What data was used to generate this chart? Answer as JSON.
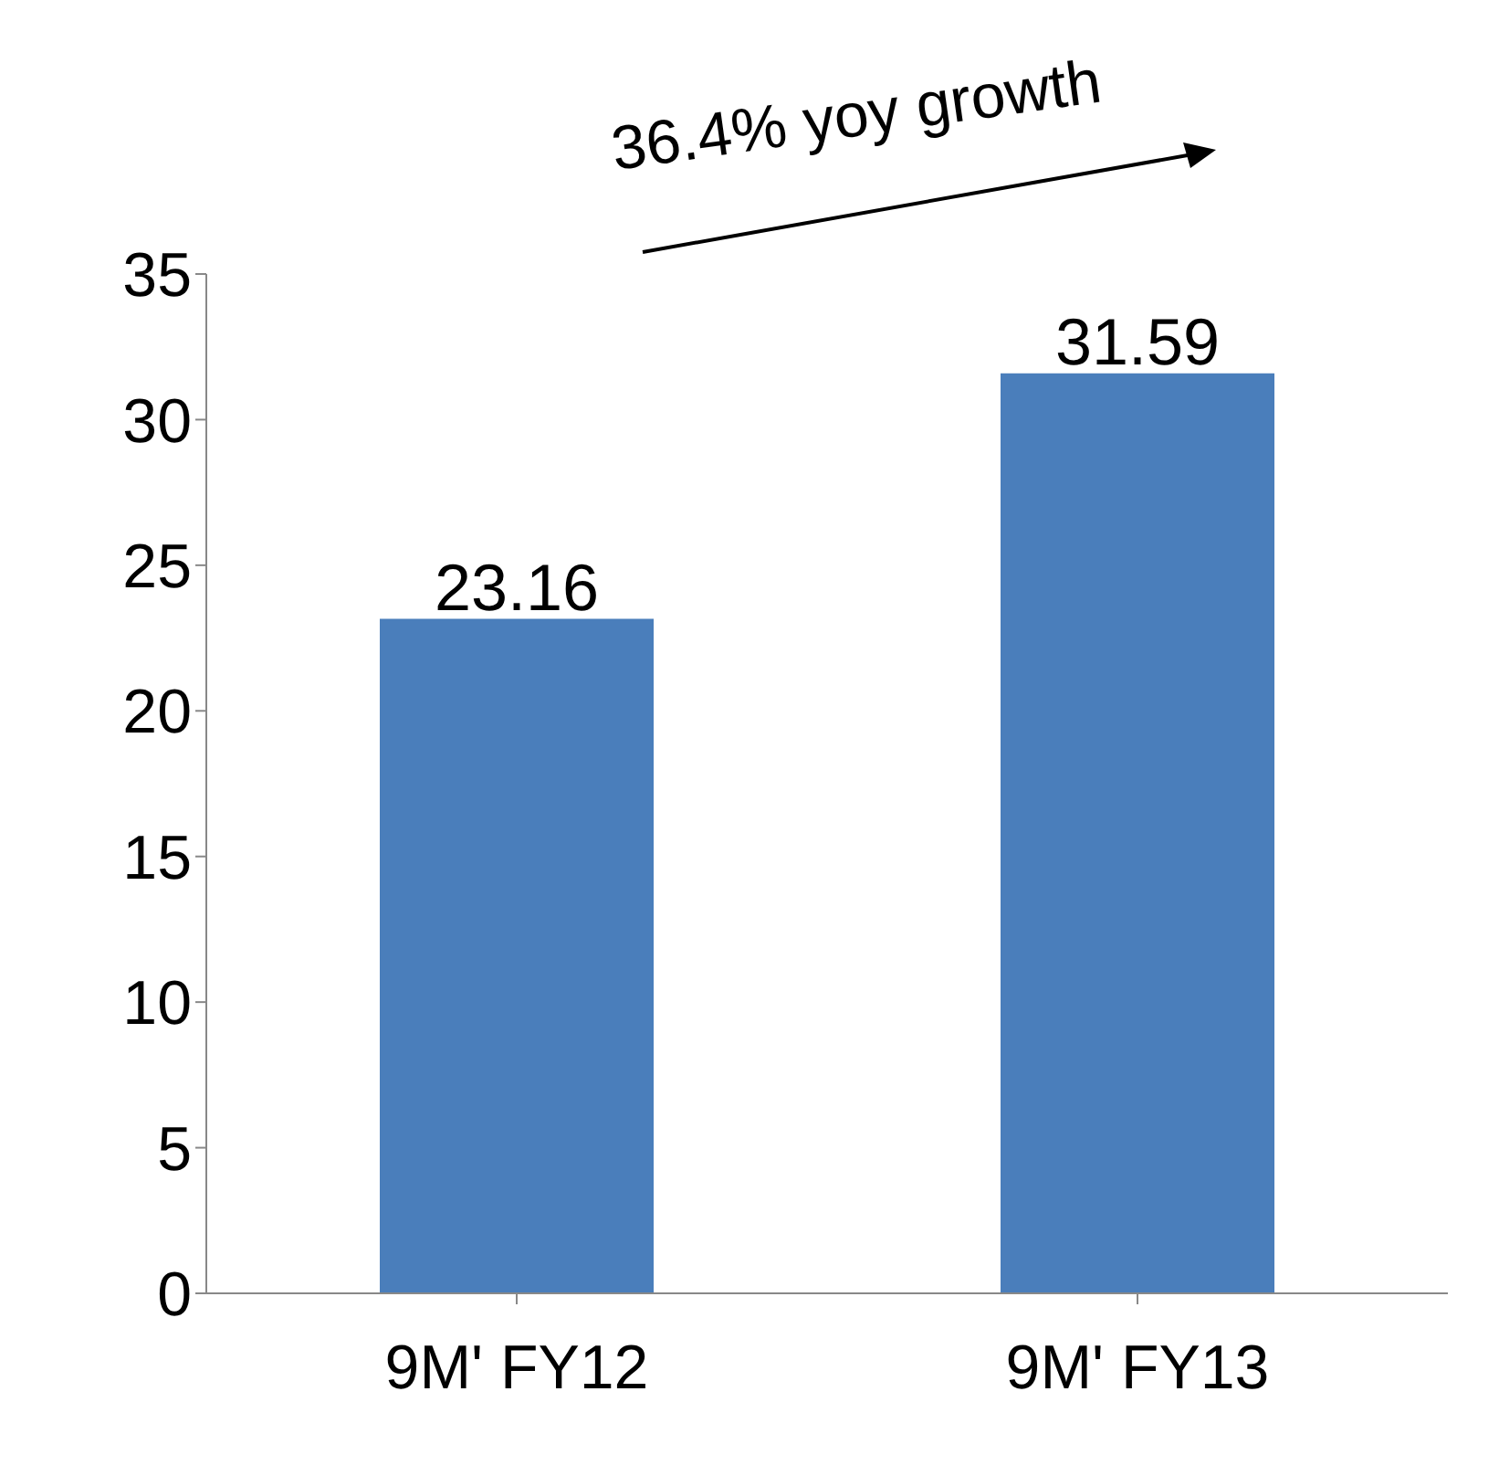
{
  "chart_data": {
    "type": "bar",
    "categories": [
      "9M' FY12",
      "9M' FY13"
    ],
    "values": [
      23.16,
      31.59
    ],
    "color": "#4a7ebb",
    "ylim": [
      0,
      35
    ],
    "yticks": [
      0,
      5,
      10,
      15,
      20,
      25,
      30,
      35
    ],
    "data_labels": true,
    "annotations": [
      "36.4% yoy growth"
    ]
  }
}
